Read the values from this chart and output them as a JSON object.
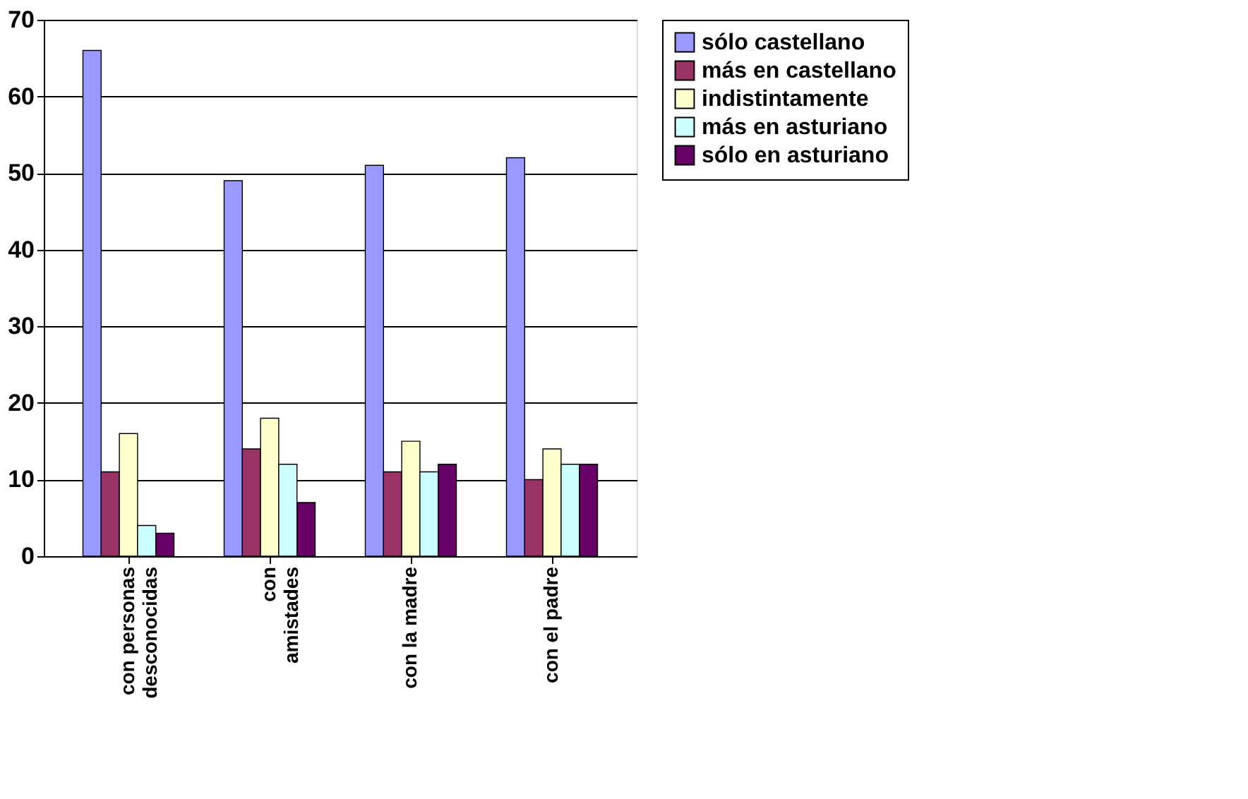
{
  "chart_data": {
    "type": "bar",
    "categories": [
      "con personas\ndesconocidas",
      "con\namistades",
      "con  la madre",
      "con el padre"
    ],
    "series": [
      {
        "name": "sólo castellano",
        "color": "#9999ff",
        "values": [
          66,
          49,
          51,
          52
        ]
      },
      {
        "name": "más en castellano",
        "color": "#993366",
        "values": [
          11,
          14,
          11,
          10
        ]
      },
      {
        "name": "indistintamente",
        "color": "#ffffcc",
        "values": [
          16,
          18,
          15,
          14
        ]
      },
      {
        "name": "más en asturiano",
        "color": "#ccffff",
        "values": [
          4,
          12,
          11,
          12
        ]
      },
      {
        "name": "sólo en asturiano",
        "color": "#660066",
        "values": [
          3,
          7,
          12,
          12
        ]
      }
    ],
    "ylim": [
      0,
      70
    ],
    "yticks": [
      0,
      10,
      20,
      30,
      40,
      50,
      60,
      70
    ],
    "grid": "y",
    "legend": "right"
  }
}
